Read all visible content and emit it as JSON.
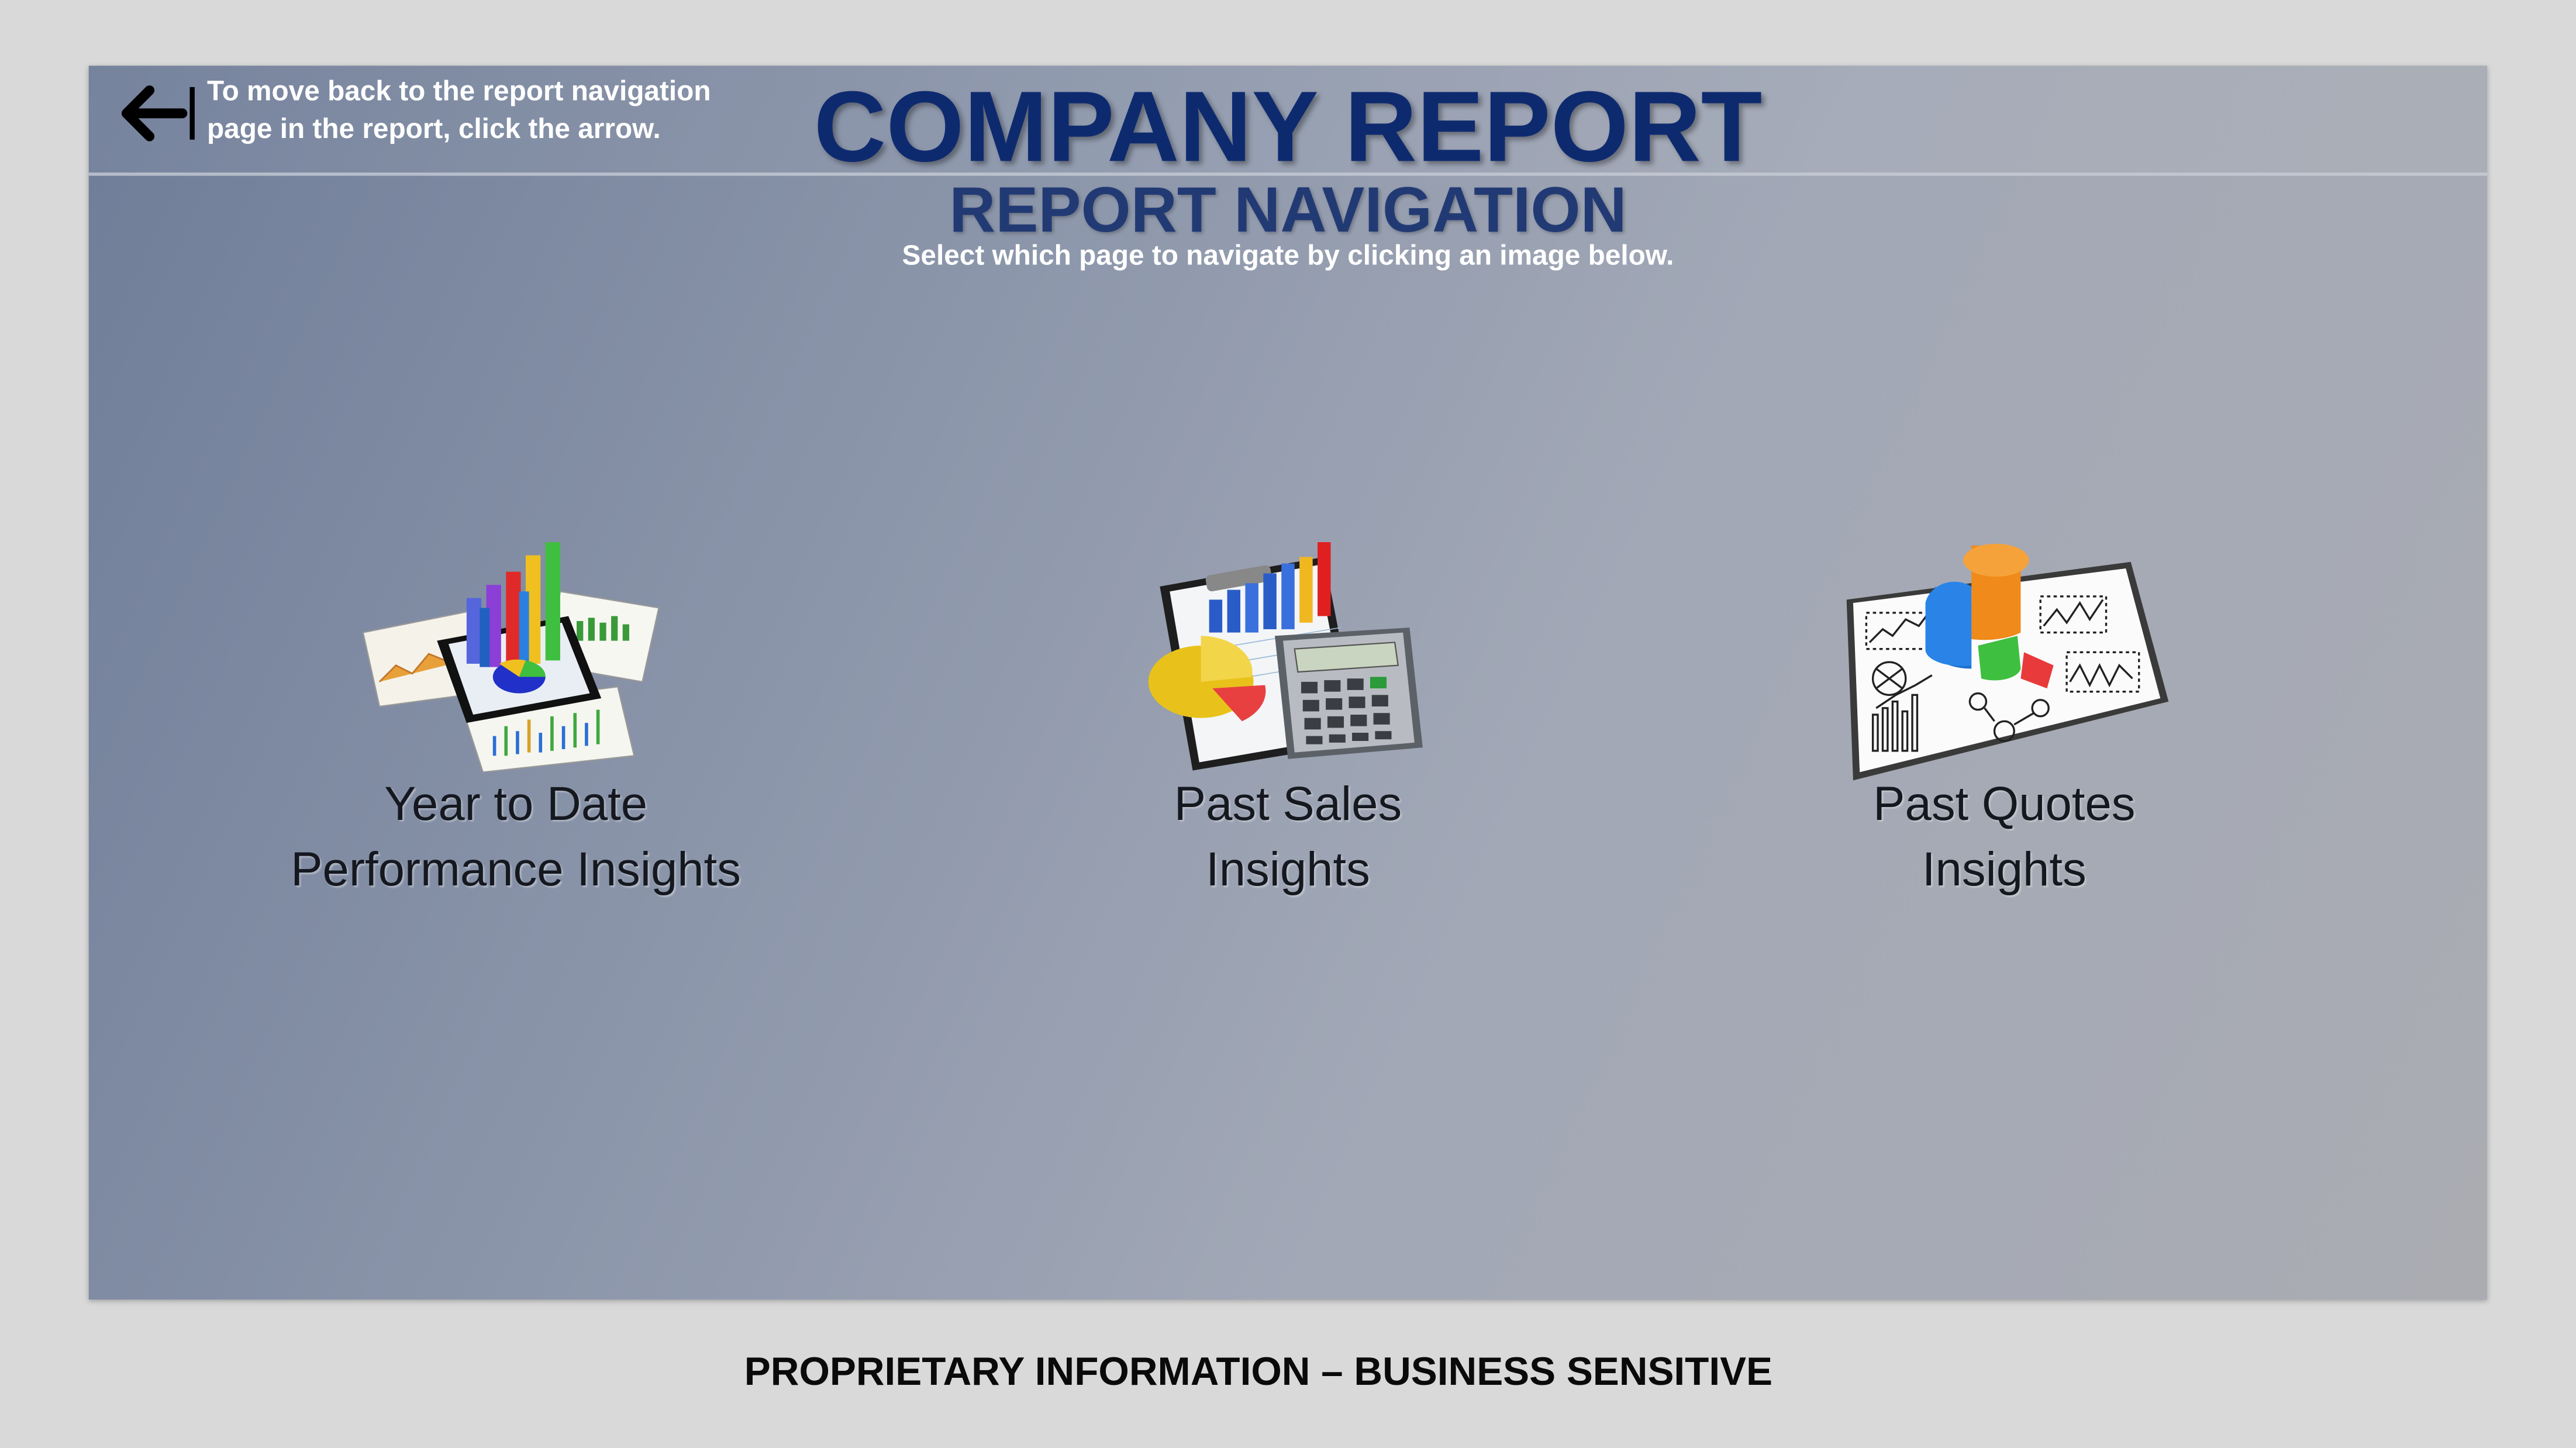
{
  "header": {
    "back_hint": "To move back to the report navigation page in the report, click the arrow.",
    "back_icon": "left-arrow-bar-icon",
    "title": "COMPANY REPORT"
  },
  "navigation": {
    "subtitle": "REPORT NAVIGATION",
    "instruction": "Select which page to navigate by clicking an image below."
  },
  "cards": [
    {
      "line1": "Year to Date",
      "line2": "Performance Insights",
      "icon": "tablet-bar-chart-icon"
    },
    {
      "line1": "Past Sales",
      "line2": "Insights",
      "icon": "calculator-chart-icon"
    },
    {
      "line1": "Past Quotes",
      "line2": "Insights",
      "icon": "3d-pie-chart-icon"
    }
  ],
  "footer": {
    "notice": "PROPRIETARY INFORMATION – BUSINESS SENSITIVE"
  },
  "colors": {
    "title": "#0e2a6f",
    "subtitle": "#223a74",
    "page_background": "#d9d9d9"
  }
}
